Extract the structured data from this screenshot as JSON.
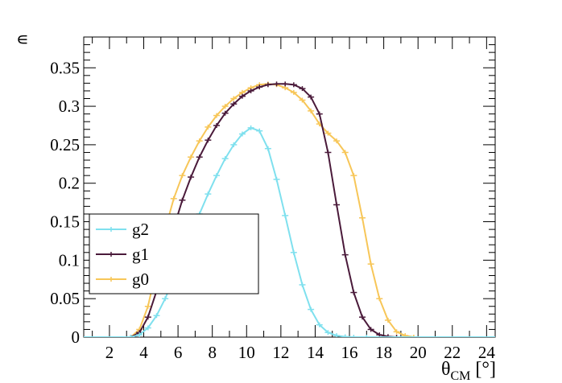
{
  "chart_data": {
    "type": "line",
    "title": "",
    "xlabel": "θCM [°]",
    "xlabel_main": "θ",
    "xlabel_sub": "CM",
    "xlabel_unit": "[°]",
    "ylabel": "∊",
    "xlim": [
      0.5,
      24.5
    ],
    "ylim": [
      0,
      0.39
    ],
    "xticks": [
      2,
      4,
      6,
      8,
      10,
      12,
      14,
      16,
      18,
      20,
      22,
      24
    ],
    "yticks": [
      0,
      0.05,
      0.1,
      0.15,
      0.2,
      0.25,
      0.3,
      0.35
    ],
    "xtick_labels": [
      "2",
      "4",
      "6",
      "8",
      "10",
      "12",
      "14",
      "16",
      "18",
      "20",
      "22",
      "24"
    ],
    "ytick_labels": [
      "0",
      "0.05",
      "0.1",
      "0.15",
      "0.2",
      "0.25",
      "0.3",
      "0.35"
    ],
    "grid": false,
    "legend_position": "lower-left",
    "series": [
      {
        "name": "g2",
        "color": "#7fe0ee",
        "x": [
          0.5,
          3.25,
          3.75,
          4.25,
          4.75,
          5.25,
          5.75,
          6.25,
          6.75,
          7.25,
          7.75,
          8.25,
          8.75,
          9.25,
          9.75,
          10.25,
          10.75,
          11.25,
          11.75,
          12.25,
          12.75,
          13.25,
          13.75,
          14.25,
          14.75,
          15.25,
          15.75,
          16.25,
          17,
          24.5
        ],
        "y": [
          0,
          0,
          0.003,
          0.012,
          0.028,
          0.05,
          0.077,
          0.105,
          0.133,
          0.16,
          0.186,
          0.21,
          0.232,
          0.25,
          0.264,
          0.272,
          0.268,
          0.245,
          0.205,
          0.158,
          0.11,
          0.068,
          0.036,
          0.016,
          0.006,
          0.002,
          0.0005,
          0,
          0,
          0
        ]
      },
      {
        "name": "g1",
        "color": "#4a1a3a",
        "x": [
          0.5,
          3.25,
          3.75,
          4.25,
          4.75,
          5.25,
          5.75,
          6.25,
          6.75,
          7.25,
          7.75,
          8.25,
          8.75,
          9.25,
          9.75,
          10.25,
          10.75,
          11.25,
          11.75,
          12.25,
          12.75,
          13.25,
          13.75,
          14.25,
          14.75,
          15.25,
          15.75,
          16.25,
          16.75,
          17.25,
          17.75,
          18.25,
          18.75,
          24.5
        ],
        "y": [
          0,
          0,
          0.006,
          0.026,
          0.06,
          0.1,
          0.142,
          0.178,
          0.208,
          0.234,
          0.256,
          0.275,
          0.291,
          0.303,
          0.313,
          0.32,
          0.325,
          0.328,
          0.329,
          0.329,
          0.328,
          0.323,
          0.312,
          0.29,
          0.24,
          0.172,
          0.107,
          0.058,
          0.026,
          0.01,
          0.003,
          0.0008,
          0,
          0
        ]
      },
      {
        "name": "g0",
        "color": "#f7c658",
        "x": [
          0.5,
          3.25,
          3.75,
          4.25,
          4.75,
          5.25,
          5.75,
          6.25,
          6.75,
          7.25,
          7.75,
          8.25,
          8.75,
          9.25,
          9.75,
          10.25,
          10.75,
          11.25,
          11.75,
          12.25,
          12.75,
          13.25,
          13.75,
          14.25,
          14.75,
          15.25,
          15.75,
          16.25,
          16.75,
          17.25,
          17.75,
          18.25,
          18.75,
          19.25,
          19.75,
          24.5
        ],
        "y": [
          0,
          0,
          0.01,
          0.04,
          0.09,
          0.14,
          0.18,
          0.21,
          0.234,
          0.255,
          0.273,
          0.288,
          0.3,
          0.31,
          0.318,
          0.324,
          0.328,
          0.329,
          0.328,
          0.324,
          0.318,
          0.308,
          0.294,
          0.277,
          0.265,
          0.255,
          0.24,
          0.21,
          0.155,
          0.095,
          0.05,
          0.022,
          0.007,
          0.002,
          0,
          0
        ]
      }
    ],
    "legend_entries": [
      "g2",
      "g1",
      "g0"
    ]
  }
}
